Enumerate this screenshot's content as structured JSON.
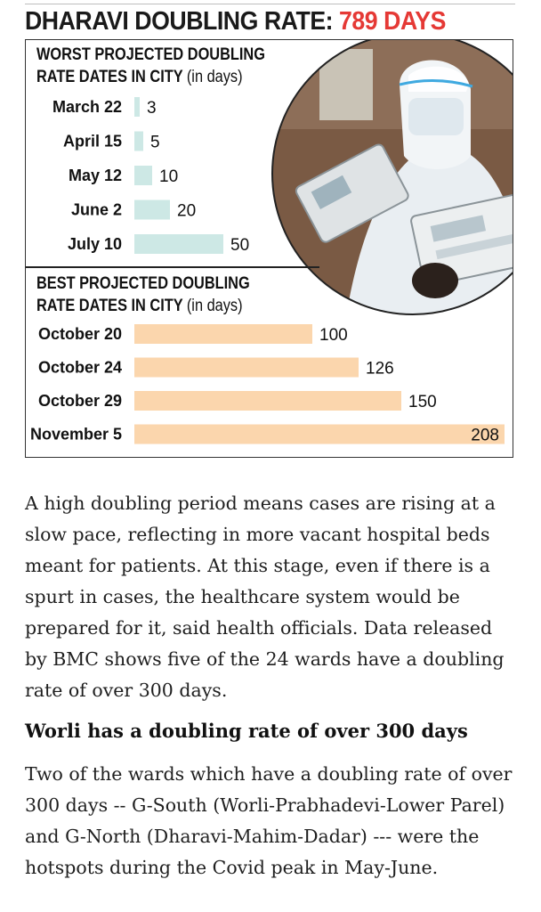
{
  "headline": {
    "prefix": "DHARAVI DOUBLING RATE: ",
    "highlight": "789 DAYS"
  },
  "colors": {
    "accent": "#e53935",
    "worst_bar": "#cde8e5",
    "best_bar": "#fbd6ad"
  },
  "chart_data": [
    {
      "type": "bar",
      "orientation": "horizontal",
      "title": "WORST PROJECTED DOUBLING RATE DATES IN CITY",
      "title_lines": [
        "WORST PROJECTED DOUBLING",
        "RATE DATES IN CITY"
      ],
      "unit": "(in days)",
      "categories": [
        "March 22",
        "April 15",
        "May 12",
        "June 2",
        "July 10"
      ],
      "values": [
        3,
        5,
        10,
        20,
        50
      ],
      "xlim": [
        0,
        208
      ]
    },
    {
      "type": "bar",
      "orientation": "horizontal",
      "title": "BEST PROJECTED DOUBLING RATE DATES IN CITY",
      "title_lines": [
        "BEST PROJECTED DOUBLING",
        "RATE DATES IN CITY"
      ],
      "unit": "(in days)",
      "categories": [
        "October 20",
        "October 24",
        "October 29",
        "November 5"
      ],
      "values": [
        100,
        126,
        150,
        208
      ],
      "xlim": [
        0,
        208
      ]
    }
  ],
  "article": {
    "paragraph1": "A high doubling period means cases are rising at a slow pace, reflecting in more vacant hospital beds meant for patients. At this stage, even if there is a spurt in cases, the healthcare system would be prepared for it, said health officials. Data released by BMC shows five of the 24 wards have a doubling rate of over 300 days.",
    "subheading": "Worli has a doubling rate of over 300 days",
    "paragraph2": "Two of the wards which have a doubling rate of over 300 days -- G-South (Worli-Prabhadevi-Lower Parel) and G-North (Dharavi-Mahim-Dadar) --- were the hotspots during the Covid peak in May-June."
  }
}
